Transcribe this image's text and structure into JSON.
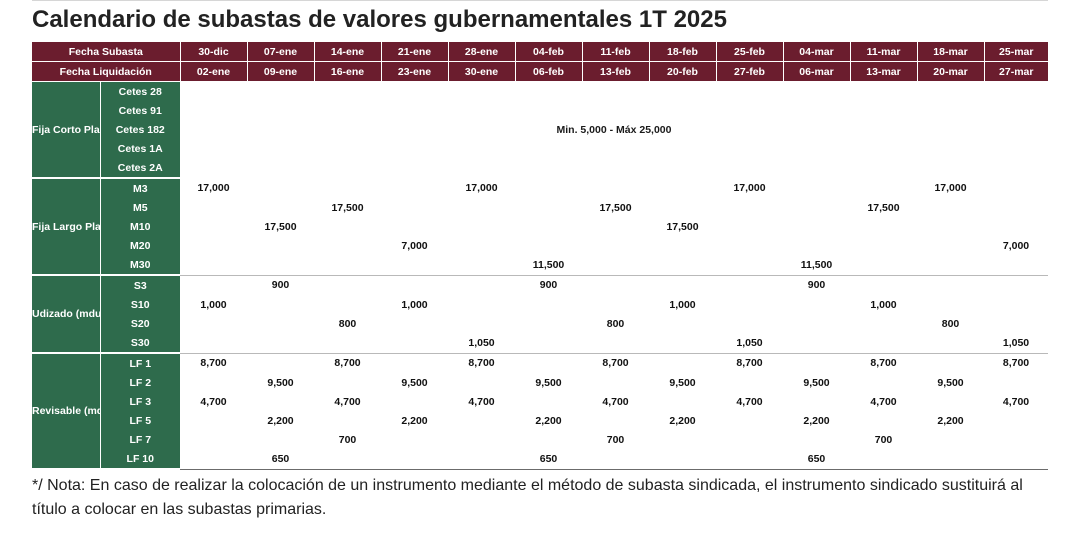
{
  "title": "Calendario de subastas de valores gubernamentales 1T 2025",
  "header": {
    "fecha_subasta_label": "Fecha Subasta",
    "fecha_liquidacion_label": "Fecha Liquidación",
    "subasta_dates": [
      "30-dic",
      "07-ene",
      "14-ene",
      "21-ene",
      "28-ene",
      "04-feb",
      "11-feb",
      "18-feb",
      "25-feb",
      "04-mar",
      "11-mar",
      "18-mar",
      "25-mar"
    ],
    "liquidacion_dates": [
      "02-ene",
      "09-ene",
      "16-ene",
      "23-ene",
      "30-ene",
      "06-feb",
      "13-feb",
      "20-feb",
      "27-feb",
      "06-mar",
      "13-mar",
      "20-mar",
      "27-mar"
    ]
  },
  "groups": {
    "fija_corto": {
      "label": "Fija Corto Plazo (mdp)",
      "instruments": [
        "Cetes 28",
        "Cetes 91",
        "Cetes 182",
        "Cetes 1A",
        "Cetes 2A"
      ],
      "merged_text": "Min. 5,000 - Máx 25,000"
    },
    "fija_largo": {
      "label": "Fija Largo Plazo (mdp)",
      "rows": [
        {
          "name": "M3",
          "values": [
            "17,000",
            "",
            "",
            "",
            "17,000",
            "",
            "",
            "",
            "17,000",
            "",
            "",
            "17,000",
            ""
          ]
        },
        {
          "name": "M5",
          "values": [
            "",
            "",
            "17,500",
            "",
            "",
            "",
            "17,500",
            "",
            "",
            "",
            "17,500",
            "",
            ""
          ]
        },
        {
          "name": "M10",
          "values": [
            "",
            "17,500",
            "",
            "",
            "",
            "",
            "",
            "17,500",
            "",
            "",
            "",
            "",
            ""
          ]
        },
        {
          "name": "M20",
          "values": [
            "",
            "",
            "",
            "7,000",
            "",
            "",
            "",
            "",
            "",
            "",
            "",
            "",
            "7,000"
          ]
        },
        {
          "name": "M30",
          "values": [
            "",
            "",
            "",
            "",
            "",
            "11,500",
            "",
            "",
            "",
            "11,500",
            "",
            "",
            ""
          ]
        }
      ]
    },
    "udizado": {
      "label": "Udizado (mdu)",
      "rows": [
        {
          "name": "S3",
          "values": [
            "",
            "900",
            "",
            "",
            "",
            "900",
            "",
            "",
            "",
            "900",
            "",
            "",
            ""
          ]
        },
        {
          "name": "S10",
          "values": [
            "1,000",
            "",
            "",
            "1,000",
            "",
            "",
            "",
            "1,000",
            "",
            "",
            "1,000",
            "",
            ""
          ]
        },
        {
          "name": "S20",
          "values": [
            "",
            "",
            "800",
            "",
            "",
            "",
            "800",
            "",
            "",
            "",
            "",
            "800",
            ""
          ]
        },
        {
          "name": "S30",
          "values": [
            "",
            "",
            "",
            "",
            "1,050",
            "",
            "",
            "",
            "1,050",
            "",
            "",
            "",
            "1,050"
          ]
        }
      ]
    },
    "revisable": {
      "label": "Revisable (mdp)",
      "rows": [
        {
          "name": "LF 1",
          "values": [
            "8,700",
            "",
            "8,700",
            "",
            "8,700",
            "",
            "8,700",
            "",
            "8,700",
            "",
            "8,700",
            "",
            "8,700"
          ]
        },
        {
          "name": "LF 2",
          "values": [
            "",
            "9,500",
            "",
            "9,500",
            "",
            "9,500",
            "",
            "9,500",
            "",
            "9,500",
            "",
            "9,500",
            ""
          ]
        },
        {
          "name": "LF 3",
          "values": [
            "4,700",
            "",
            "4,700",
            "",
            "4,700",
            "",
            "4,700",
            "",
            "4,700",
            "",
            "4,700",
            "",
            "4,700"
          ]
        },
        {
          "name": "LF 5",
          "values": [
            "",
            "2,200",
            "",
            "2,200",
            "",
            "2,200",
            "",
            "2,200",
            "",
            "2,200",
            "",
            "2,200",
            ""
          ]
        },
        {
          "name": "LF 7",
          "values": [
            "",
            "",
            "700",
            "",
            "",
            "",
            "700",
            "",
            "",
            "",
            "700",
            "",
            ""
          ]
        },
        {
          "name": "LF 10",
          "values": [
            "",
            "650",
            "",
            "",
            "",
            "650",
            "",
            "",
            "",
            "650",
            "",
            "",
            ""
          ]
        }
      ]
    }
  },
  "note": "*/ Nota: En caso de realizar la colocación de un instrumento mediante el método de subasta sindicada, el instrumento sindicado sustituirá al título a colocar en las subastas primarias.",
  "colors": {
    "header_bg": "#6b1d2e",
    "group_bg": "#2e6b4c"
  }
}
